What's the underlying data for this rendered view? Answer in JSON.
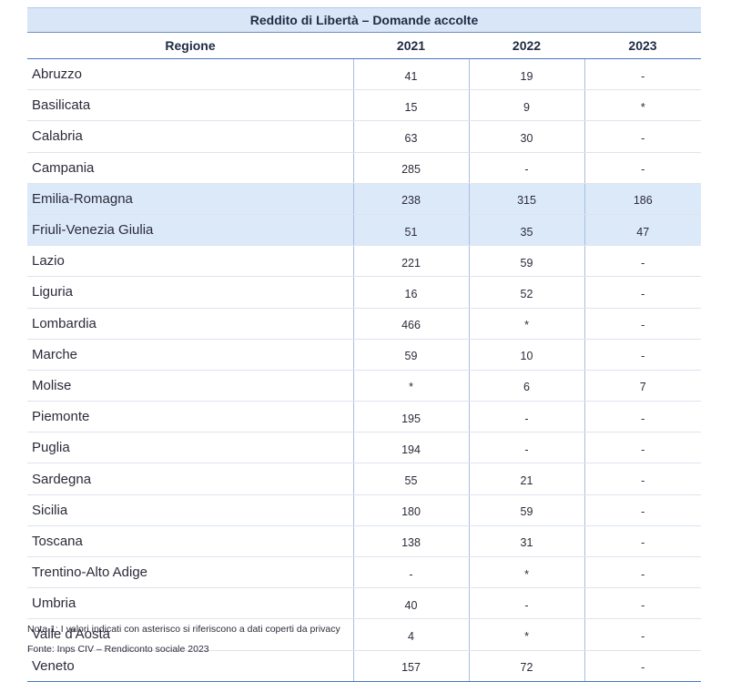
{
  "table": {
    "title": "Reddito di Libertà – Domande accolte",
    "headers": [
      "Regione",
      "2021",
      "2022",
      "2023"
    ],
    "rows": [
      {
        "region": "Abruzzo",
        "values": [
          "41",
          "19",
          "-"
        ]
      },
      {
        "region": "Basilicata",
        "values": [
          "15",
          "9",
          "*"
        ]
      },
      {
        "region": "Calabria",
        "values": [
          "63",
          "30",
          "-"
        ]
      },
      {
        "region": "Campania",
        "values": [
          "285",
          "-",
          "-"
        ]
      },
      {
        "region": "Emilia-Romagna",
        "values": [
          "238",
          "315",
          "186"
        ]
      },
      {
        "region": "Friuli-Venezia Giulia",
        "values": [
          "51",
          "35",
          "47"
        ]
      },
      {
        "region": "Lazio",
        "values": [
          "221",
          "59",
          "-"
        ]
      },
      {
        "region": "Liguria",
        "values": [
          "16",
          "52",
          "-"
        ]
      },
      {
        "region": "Lombardia",
        "values": [
          "466",
          "*",
          "-"
        ]
      },
      {
        "region": "Marche",
        "values": [
          "59",
          "10",
          "-"
        ]
      },
      {
        "region": "Molise",
        "values": [
          "*",
          "6",
          "7"
        ]
      },
      {
        "region": "Piemonte",
        "values": [
          "195",
          "-",
          "-"
        ]
      },
      {
        "region": "Puglia",
        "values": [
          "194",
          "-",
          "-"
        ]
      },
      {
        "region": "Sardegna",
        "values": [
          "55",
          "21",
          "-"
        ]
      },
      {
        "region": "Sicilia",
        "values": [
          "180",
          "59",
          "-"
        ]
      },
      {
        "region": "Toscana",
        "values": [
          "138",
          "31",
          "-"
        ]
      },
      {
        "region": "Trentino-Alto Adige",
        "values": [
          "-",
          "*",
          "-"
        ]
      },
      {
        "region": "Umbria",
        "values": [
          "40",
          "-",
          "-"
        ]
      },
      {
        "region": "Valle d'Aosta",
        "values": [
          "4",
          "*",
          "-"
        ]
      },
      {
        "region": "Veneto",
        "values": [
          "157",
          "72",
          "-"
        ]
      }
    ]
  },
  "notes": {
    "note1": "Nota 1: I valori indicati con asterisco si riferiscono a dati coperti da privacy",
    "source": "Fonte: Inps CIV – Rendiconto sociale 2023"
  },
  "colors": {
    "title_bg": "#d9e6f7",
    "highlight_bg": "#dce9f8",
    "rule_blue": "#4a78c2"
  }
}
